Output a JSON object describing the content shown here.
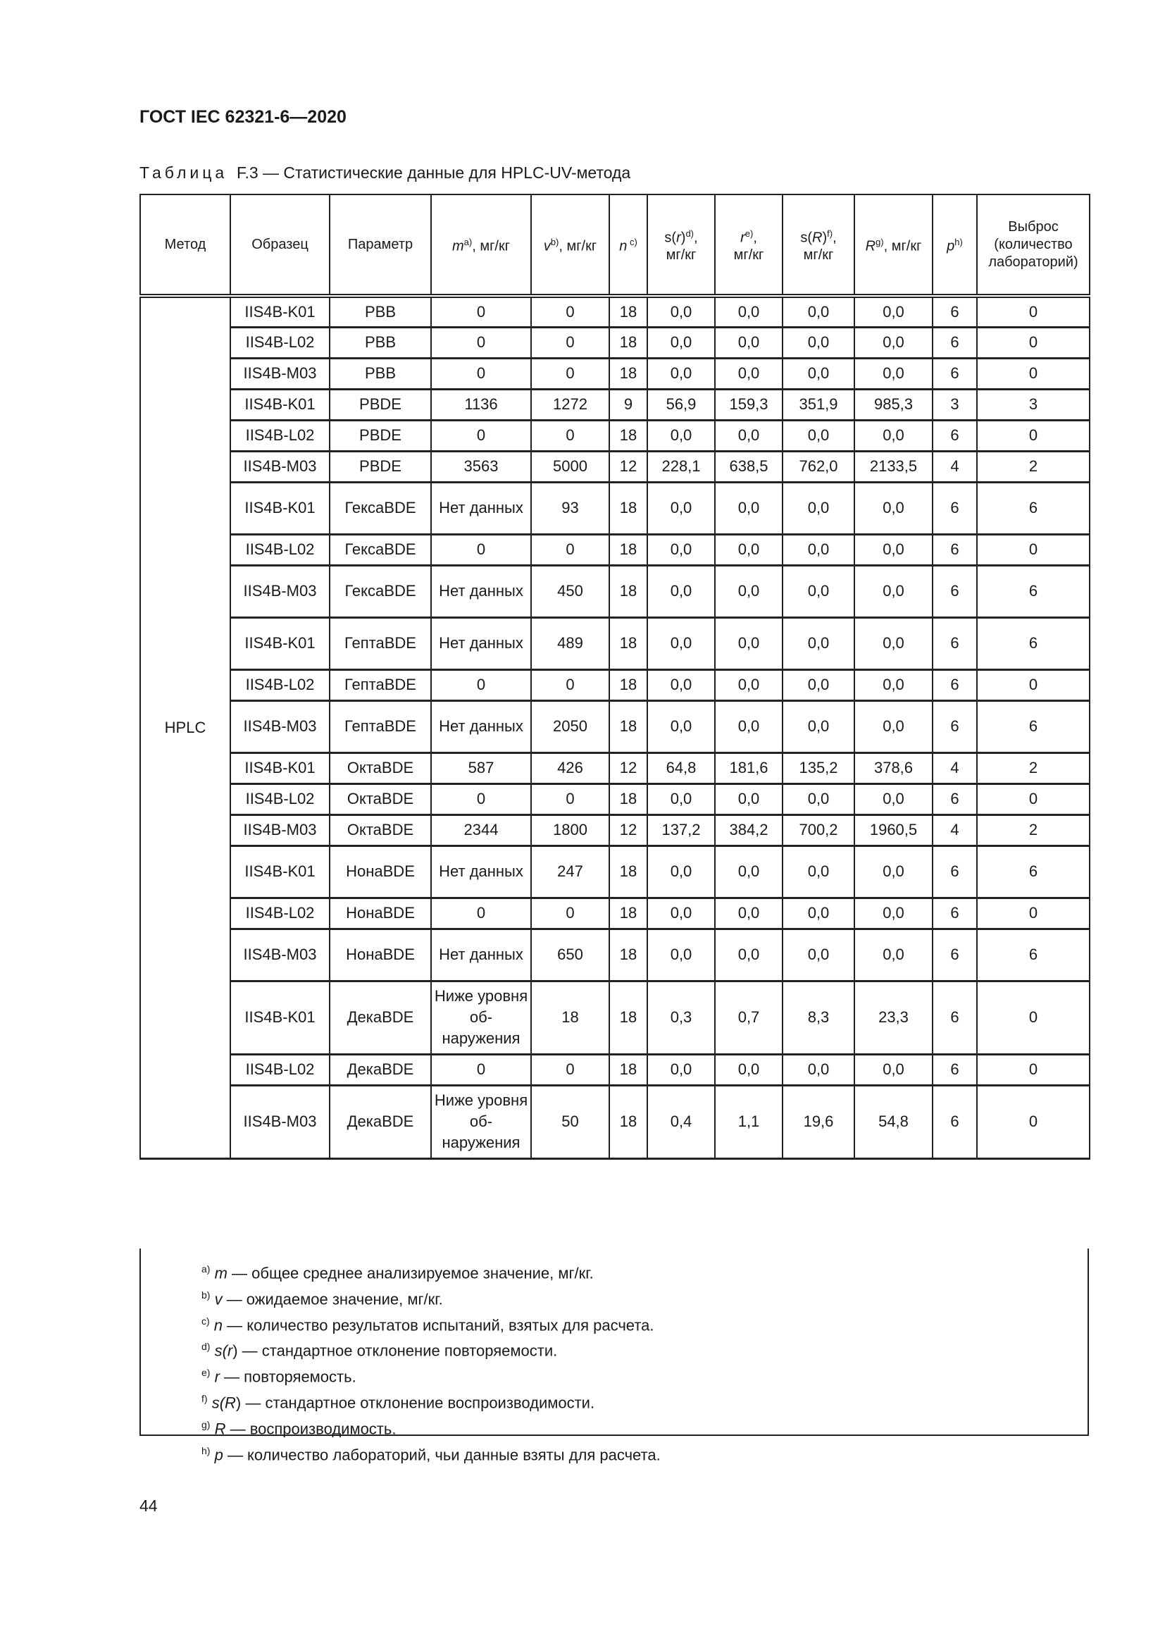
{
  "header": {
    "title": "ГОСТ IEC 62321-6—2020"
  },
  "caption": {
    "label": "Таблица",
    "text": "F.3 — Статистические данные для HPLC-UV-метода"
  },
  "table": {
    "columns": [
      {
        "main": "Метод"
      },
      {
        "main": "Образец"
      },
      {
        "main": "Параметр"
      },
      {
        "sym": "m",
        "sup": "a)",
        "unit": ", мг/кг"
      },
      {
        "sym": "v",
        "sup": "b)",
        "unit": ", мг/кг"
      },
      {
        "sym": "n",
        "sup": " c)",
        "unit": ""
      },
      {
        "pre": "s(",
        "sym": "r",
        "post": ")",
        "sup": "d)",
        "unit": ",",
        "line2": "мг/кг"
      },
      {
        "sym": "r",
        "sup": "e)",
        "unit": ",",
        "line2": "мг/кг"
      },
      {
        "pre": "s(",
        "sym": "R",
        "post": ")",
        "sup": "f)",
        "unit": ",",
        "line2": "мг/кг"
      },
      {
        "sym": "R",
        "sup": "g)",
        "unit": ", мг/кг"
      },
      {
        "sym": "p",
        "sup": "h)",
        "unit": ""
      },
      {
        "main": "Выброс (количество лабораторий)"
      }
    ],
    "method": "HPLC",
    "rows": [
      [
        "IIS4B-K01",
        "PBB",
        "0",
        "0",
        "18",
        "0,0",
        "0,0",
        "0,0",
        "0,0",
        "6",
        "0"
      ],
      [
        "IIS4B-L02",
        "PBB",
        "0",
        "0",
        "18",
        "0,0",
        "0,0",
        "0,0",
        "0,0",
        "6",
        "0"
      ],
      [
        "IIS4B-M03",
        "PBB",
        "0",
        "0",
        "18",
        "0,0",
        "0,0",
        "0,0",
        "0,0",
        "6",
        "0"
      ],
      [
        "IIS4B-K01",
        "PBDE",
        "1136",
        "1272",
        "9",
        "56,9",
        "159,3",
        "351,9",
        "985,3",
        "3",
        "3"
      ],
      [
        "IIS4B-L02",
        "PBDE",
        "0",
        "0",
        "18",
        "0,0",
        "0,0",
        "0,0",
        "0,0",
        "6",
        "0"
      ],
      [
        "IIS4B-M03",
        "PBDE",
        "3563",
        "5000",
        "12",
        "228,1",
        "638,5",
        "762,0",
        "2133,5",
        "4",
        "2"
      ],
      [
        "IIS4B-K01",
        "ГексаBDE",
        "Нет данных",
        "93",
        "18",
        "0,0",
        "0,0",
        "0,0",
        "0,0",
        "6",
        "6"
      ],
      [
        "IIS4B-L02",
        "ГексаBDE",
        "0",
        "0",
        "18",
        "0,0",
        "0,0",
        "0,0",
        "0,0",
        "6",
        "0"
      ],
      [
        "IIS4B-M03",
        "ГексаBDE",
        "Нет данных",
        "450",
        "18",
        "0,0",
        "0,0",
        "0,0",
        "0,0",
        "6",
        "6"
      ],
      [
        "IIS4B-K01",
        "ГептаBDE",
        "Нет данных",
        "489",
        "18",
        "0,0",
        "0,0",
        "0,0",
        "0,0",
        "6",
        "6"
      ],
      [
        "IIS4B-L02",
        "ГептаBDE",
        "0",
        "0",
        "18",
        "0,0",
        "0,0",
        "0,0",
        "0,0",
        "6",
        "0"
      ],
      [
        "IIS4B-M03",
        "ГептаBDE",
        "Нет данных",
        "2050",
        "18",
        "0,0",
        "0,0",
        "0,0",
        "0,0",
        "6",
        "6"
      ],
      [
        "IIS4B-K01",
        "ОктаBDE",
        "587",
        "426",
        "12",
        "64,8",
        "181,6",
        "135,2",
        "378,6",
        "4",
        "2"
      ],
      [
        "IIS4B-L02",
        "ОктаBDE",
        "0",
        "0",
        "18",
        "0,0",
        "0,0",
        "0,0",
        "0,0",
        "6",
        "0"
      ],
      [
        "IIS4B-M03",
        "ОктаBDE",
        "2344",
        "1800",
        "12",
        "137,2",
        "384,2",
        "700,2",
        "1960,5",
        "4",
        "2"
      ],
      [
        "IIS4B-K01",
        "НонаBDE",
        "Нет данных",
        "247",
        "18",
        "0,0",
        "0,0",
        "0,0",
        "0,0",
        "6",
        "6"
      ],
      [
        "IIS4B-L02",
        "НонаBDE",
        "0",
        "0",
        "18",
        "0,0",
        "0,0",
        "0,0",
        "0,0",
        "6",
        "0"
      ],
      [
        "IIS4B-M03",
        "НонаBDE",
        "Нет данных",
        "650",
        "18",
        "0,0",
        "0,0",
        "0,0",
        "0,0",
        "6",
        "6"
      ],
      [
        "IIS4B-K01",
        "ДекаBDE",
        "Ниже уровня об-наружения",
        "18",
        "18",
        "0,3",
        "0,7",
        "8,3",
        "23,3",
        "6",
        "0"
      ],
      [
        "IIS4B-L02",
        "ДекаBDE",
        "0",
        "0",
        "18",
        "0,0",
        "0,0",
        "0,0",
        "0,0",
        "6",
        "0"
      ],
      [
        "IIS4B-M03",
        "ДекаBDE",
        "Ниже уровня об-наружения",
        "50",
        "18",
        "0,4",
        "1,1",
        "19,6",
        "54,8",
        "6",
        "0"
      ]
    ]
  },
  "footnotes": [
    {
      "mark": "a)",
      "sym": "m",
      "text": " — общее среднее анализируемое значение, мг/кг."
    },
    {
      "mark": "b)",
      "sym": "v",
      "text": " — ожидаемое значение, мг/кг."
    },
    {
      "mark": "c)",
      "sym": "n",
      "text": " — количество результатов испытаний, взятых для расчета."
    },
    {
      "mark": "d)",
      "pre": "s(",
      "sym": "r",
      "post": ")",
      "text": " — стандартное отклонение повторяемости."
    },
    {
      "mark": "e)",
      "sym": "r",
      "text": " — повторяемость."
    },
    {
      "mark": "f)",
      "pre": "s(",
      "sym": "R",
      "post": ")",
      "text": " — стандартное отклонение воспроизводимости."
    },
    {
      "mark": "g)",
      "sym": "R",
      "text": " — воспроизводимость."
    },
    {
      "mark": "h)",
      "sym": "p",
      "text": " — количество лабораторий, чьи данные взяты для расчета."
    }
  ],
  "page_number": "44"
}
